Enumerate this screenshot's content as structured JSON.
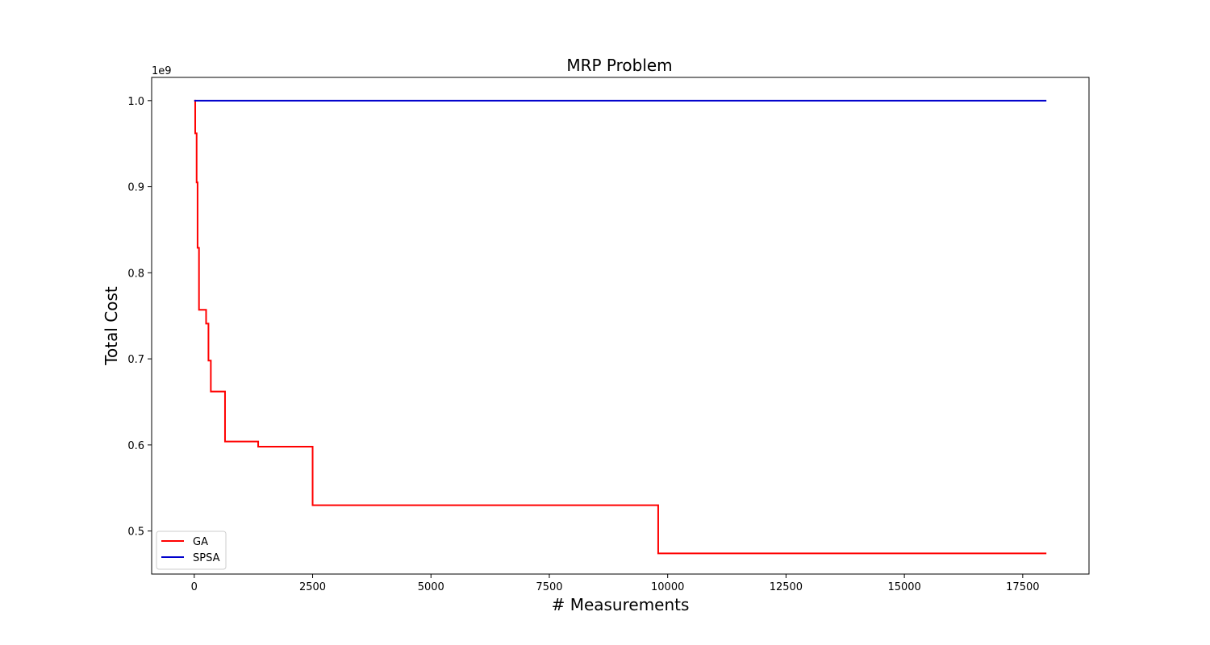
{
  "chart_data": {
    "type": "line",
    "title": "MRP Problem",
    "xlabel": "# Measurements",
    "ylabel": "Total Cost",
    "y_offset_text": "1e9",
    "y_scale_factor": 1000000000,
    "xlim": [
      -900,
      18900
    ],
    "ylim": [
      0.45,
      1.027
    ],
    "x_ticks": [
      0,
      2500,
      5000,
      7500,
      10000,
      12500,
      15000,
      17500
    ],
    "y_ticks": [
      0.5,
      0.6,
      0.7,
      0.8,
      0.9,
      1.0
    ],
    "y_tick_labels": [
      "0.5",
      "0.6",
      "0.7",
      "0.8",
      "0.9",
      "1.0"
    ],
    "grid": false,
    "legend_position": "lower left",
    "series": [
      {
        "name": "GA",
        "color": "#ff0000",
        "step": true,
        "x": [
          0,
          20,
          50,
          70,
          100,
          250,
          300,
          350,
          650,
          1350,
          2500,
          9800,
          18000
        ],
        "y": [
          1.0,
          0.962,
          0.905,
          0.829,
          0.757,
          0.741,
          0.698,
          0.662,
          0.604,
          0.598,
          0.53,
          0.474,
          0.474
        ]
      },
      {
        "name": "SPSA",
        "color": "#0000cc",
        "step": false,
        "x": [
          0,
          18000
        ],
        "y": [
          1.0,
          1.0
        ]
      }
    ]
  }
}
